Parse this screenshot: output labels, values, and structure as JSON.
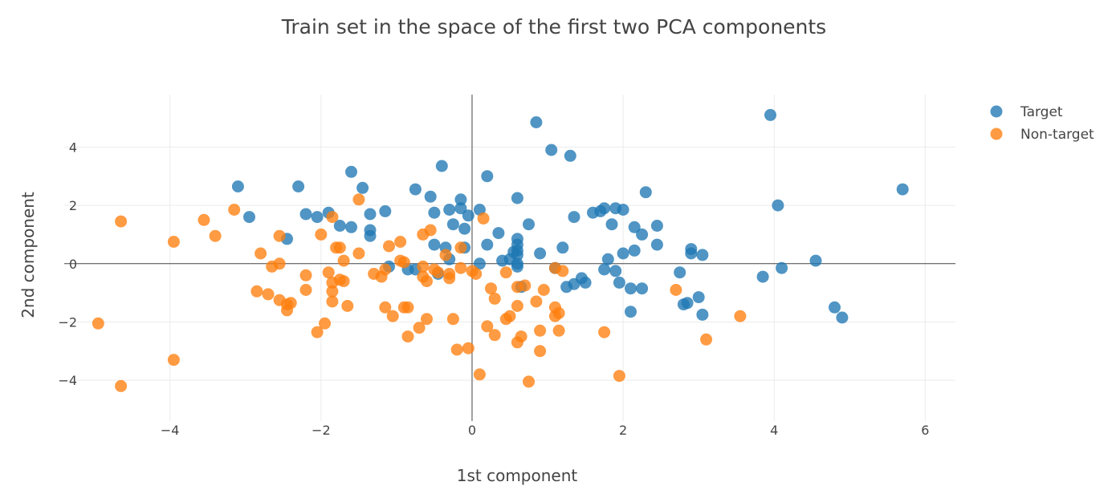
{
  "chart_data": {
    "type": "scatter",
    "title": "Train set in the space of the first two PCA components",
    "xlabel": "1st component",
    "ylabel": "2nd component",
    "xlim": [
      -5.4,
      6.4
    ],
    "ylim": [
      -5.4,
      5.8
    ],
    "xticks": [
      -4,
      -2,
      0,
      2,
      4,
      6
    ],
    "xtick_labels": [
      "−4",
      "−2",
      "0",
      "2",
      "4",
      "6"
    ],
    "yticks": [
      -4,
      -2,
      0,
      2,
      4
    ],
    "ytick_labels": [
      "−4",
      "−2",
      "0",
      "2",
      "4"
    ],
    "grid": true,
    "legend_position": "top-right",
    "series": [
      {
        "name": "Target",
        "color": "#1f77b4",
        "points": [
          [
            0.85,
            4.85
          ],
          [
            3.95,
            5.1
          ],
          [
            1.05,
            3.9
          ],
          [
            1.3,
            3.7
          ],
          [
            -0.4,
            3.35
          ],
          [
            -1.6,
            3.15
          ],
          [
            0.2,
            3.0
          ],
          [
            -3.1,
            2.65
          ],
          [
            -2.3,
            2.65
          ],
          [
            -1.45,
            2.6
          ],
          [
            -0.75,
            2.55
          ],
          [
            -0.55,
            2.3
          ],
          [
            0.6,
            2.25
          ],
          [
            -0.15,
            2.2
          ],
          [
            2.3,
            2.45
          ],
          [
            5.7,
            2.55
          ],
          [
            4.05,
            2.0
          ],
          [
            -2.2,
            1.7
          ],
          [
            -2.05,
            1.6
          ],
          [
            -1.9,
            1.75
          ],
          [
            -1.35,
            1.7
          ],
          [
            -1.15,
            1.8
          ],
          [
            -0.5,
            1.75
          ],
          [
            -0.3,
            1.85
          ],
          [
            -0.15,
            1.9
          ],
          [
            -0.05,
            1.65
          ],
          [
            0.1,
            1.85
          ],
          [
            1.35,
            1.6
          ],
          [
            1.6,
            1.75
          ],
          [
            1.7,
            1.8
          ],
          [
            1.75,
            1.9
          ],
          [
            1.9,
            1.9
          ],
          [
            2.0,
            1.85
          ],
          [
            -2.95,
            1.6
          ],
          [
            -1.75,
            1.3
          ],
          [
            -1.6,
            1.25
          ],
          [
            -1.35,
            1.15
          ],
          [
            -1.35,
            0.95
          ],
          [
            -0.25,
            1.35
          ],
          [
            -0.1,
            1.2
          ],
          [
            0.35,
            1.05
          ],
          [
            0.75,
            1.35
          ],
          [
            1.85,
            1.35
          ],
          [
            2.15,
            1.25
          ],
          [
            2.25,
            1.0
          ],
          [
            2.45,
            1.3
          ],
          [
            -2.45,
            0.85
          ],
          [
            -0.5,
            0.65
          ],
          [
            -0.35,
            0.55
          ],
          [
            -0.1,
            0.55
          ],
          [
            0.2,
            0.65
          ],
          [
            0.6,
            0.85
          ],
          [
            0.6,
            0.65
          ],
          [
            0.6,
            0.45
          ],
          [
            0.55,
            0.4
          ],
          [
            0.6,
            0.3
          ],
          [
            0.9,
            0.35
          ],
          [
            1.2,
            0.55
          ],
          [
            2.15,
            0.45
          ],
          [
            2.45,
            0.65
          ],
          [
            2.0,
            0.35
          ],
          [
            1.8,
            0.15
          ],
          [
            2.9,
            0.5
          ],
          [
            2.9,
            0.35
          ],
          [
            3.05,
            0.3
          ],
          [
            4.55,
            0.1
          ],
          [
            -0.3,
            0.15
          ],
          [
            0.1,
            0.0
          ],
          [
            0.4,
            0.1
          ],
          [
            0.5,
            0.15
          ],
          [
            0.6,
            0.0
          ],
          [
            0.6,
            -0.1
          ],
          [
            -0.75,
            -0.2
          ],
          [
            -0.85,
            -0.2
          ],
          [
            -0.45,
            -0.35
          ],
          [
            -1.1,
            -0.1
          ],
          [
            1.1,
            -0.15
          ],
          [
            1.75,
            -0.2
          ],
          [
            1.9,
            -0.25
          ],
          [
            2.75,
            -0.3
          ],
          [
            3.85,
            -0.45
          ],
          [
            4.1,
            -0.15
          ],
          [
            1.35,
            -0.7
          ],
          [
            1.45,
            -0.5
          ],
          [
            1.5,
            -0.65
          ],
          [
            1.25,
            -0.8
          ],
          [
            0.65,
            -0.8
          ],
          [
            1.95,
            -0.65
          ],
          [
            2.1,
            -0.85
          ],
          [
            2.25,
            -0.85
          ],
          [
            2.8,
            -1.4
          ],
          [
            2.85,
            -1.35
          ],
          [
            3.0,
            -1.15
          ],
          [
            3.05,
            -1.75
          ],
          [
            2.1,
            -1.65
          ],
          [
            4.8,
            -1.5
          ],
          [
            4.9,
            -1.85
          ]
        ]
      },
      {
        "name": "Non-target",
        "color": "#ff7f0e",
        "points": [
          [
            -4.65,
            1.45
          ],
          [
            -3.55,
            1.5
          ],
          [
            -3.4,
            0.95
          ],
          [
            -3.15,
            1.85
          ],
          [
            -3.95,
            0.75
          ],
          [
            -2.8,
            0.35
          ],
          [
            -2.65,
            -0.1
          ],
          [
            -2.55,
            0.0
          ],
          [
            -2.55,
            0.95
          ],
          [
            -2.2,
            -0.4
          ],
          [
            -2.2,
            -0.9
          ],
          [
            -2.0,
            1.0
          ],
          [
            -1.85,
            1.6
          ],
          [
            -1.8,
            0.55
          ],
          [
            -1.75,
            0.55
          ],
          [
            -1.7,
            0.1
          ],
          [
            -1.9,
            -0.3
          ],
          [
            -1.85,
            -0.65
          ],
          [
            -1.7,
            -0.6
          ],
          [
            -1.75,
            -0.55
          ],
          [
            -1.85,
            -0.95
          ],
          [
            -1.85,
            -1.3
          ],
          [
            -1.65,
            -1.45
          ],
          [
            -1.5,
            0.35
          ],
          [
            -1.5,
            2.2
          ],
          [
            -1.3,
            -0.35
          ],
          [
            -1.2,
            -0.45
          ],
          [
            -1.15,
            -0.2
          ],
          [
            -1.1,
            0.6
          ],
          [
            -0.95,
            0.75
          ],
          [
            -0.95,
            0.1
          ],
          [
            -0.9,
            0.05
          ],
          [
            -0.65,
            1.0
          ],
          [
            -0.55,
            1.15
          ],
          [
            -0.35,
            0.3
          ],
          [
            -0.15,
            0.55
          ],
          [
            -0.65,
            -0.1
          ],
          [
            -0.65,
            -0.45
          ],
          [
            -0.6,
            -0.6
          ],
          [
            -0.5,
            -0.2
          ],
          [
            -0.45,
            -0.3
          ],
          [
            -0.3,
            -0.5
          ],
          [
            -0.3,
            -0.35
          ],
          [
            -0.15,
            -0.15
          ],
          [
            0.0,
            -0.25
          ],
          [
            0.05,
            -0.35
          ],
          [
            0.15,
            1.55
          ],
          [
            0.45,
            -0.3
          ],
          [
            0.6,
            -0.8
          ],
          [
            0.7,
            -0.75
          ],
          [
            1.1,
            -0.15
          ],
          [
            1.2,
            -0.25
          ],
          [
            0.95,
            -0.9
          ],
          [
            0.25,
            -0.85
          ],
          [
            0.3,
            -1.2
          ],
          [
            0.6,
            -1.45
          ],
          [
            0.85,
            -1.3
          ],
          [
            1.1,
            -1.5
          ],
          [
            1.1,
            -1.8
          ],
          [
            1.15,
            -1.7
          ],
          [
            0.5,
            -1.8
          ],
          [
            0.45,
            -1.9
          ],
          [
            -2.85,
            -0.95
          ],
          [
            -2.7,
            -1.05
          ],
          [
            -2.55,
            -1.25
          ],
          [
            -2.45,
            -1.4
          ],
          [
            -2.4,
            -1.35
          ],
          [
            -2.45,
            -1.6
          ],
          [
            -1.15,
            -1.5
          ],
          [
            -1.05,
            -1.8
          ],
          [
            -0.9,
            -1.5
          ],
          [
            -0.85,
            -1.5
          ],
          [
            -0.6,
            -1.9
          ],
          [
            -0.7,
            -2.2
          ],
          [
            -0.85,
            -2.5
          ],
          [
            -0.25,
            -1.9
          ],
          [
            0.2,
            -2.15
          ],
          [
            0.3,
            -2.45
          ],
          [
            -0.2,
            -2.95
          ],
          [
            -0.05,
            -2.9
          ],
          [
            0.6,
            -2.7
          ],
          [
            0.65,
            -2.5
          ],
          [
            0.9,
            -2.3
          ],
          [
            0.9,
            -3.0
          ],
          [
            1.15,
            -2.3
          ],
          [
            1.75,
            -2.35
          ],
          [
            2.7,
            -0.9
          ],
          [
            3.1,
            -2.6
          ],
          [
            3.55,
            -1.8
          ],
          [
            -1.95,
            -2.05
          ],
          [
            -2.05,
            -2.35
          ],
          [
            -4.95,
            -2.05
          ],
          [
            -3.95,
            -3.3
          ],
          [
            -4.65,
            -4.2
          ],
          [
            0.1,
            -3.8
          ],
          [
            0.75,
            -4.05
          ],
          [
            1.95,
            -3.85
          ]
        ]
      }
    ]
  }
}
